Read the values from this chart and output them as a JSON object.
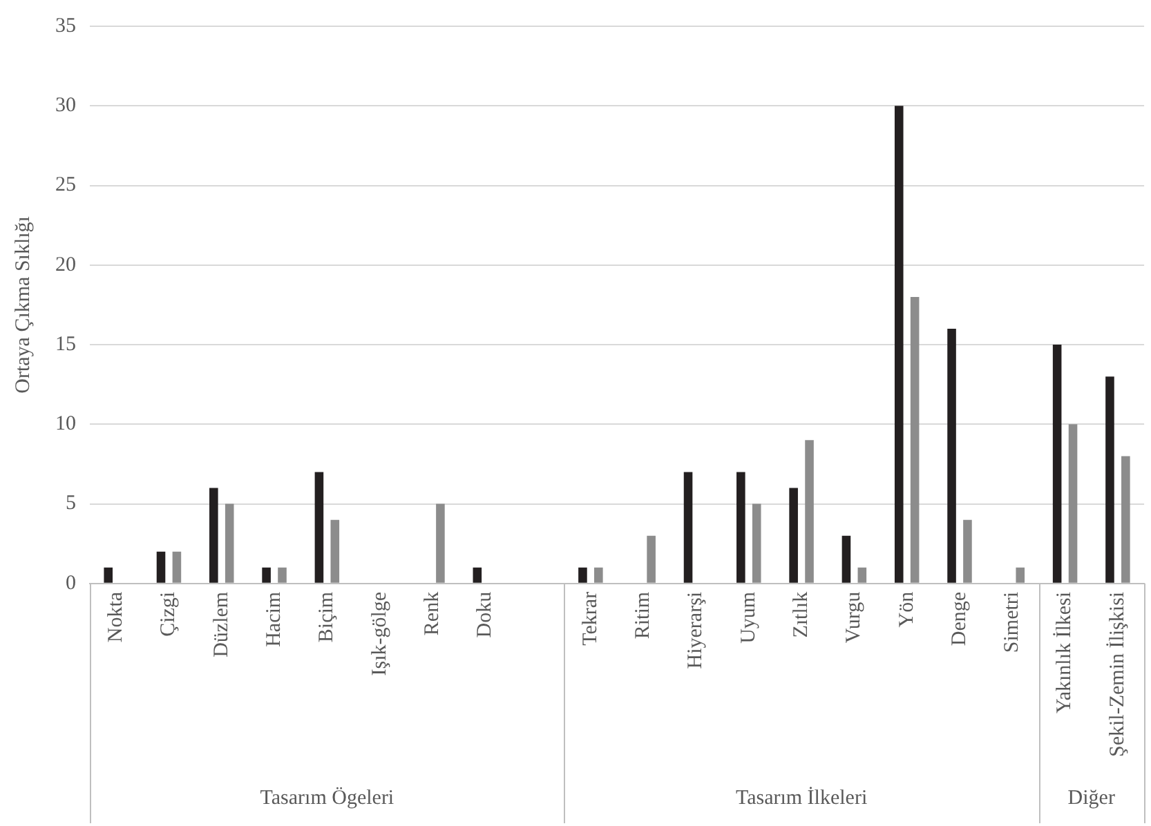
{
  "chart_data": {
    "type": "bar",
    "ylabel": "Ortaya Çıkma Sıklığı",
    "categories": [
      "Nokta",
      "Çizgi",
      "Düzlem",
      "Hacim",
      "Biçim",
      "Işık-gölge",
      "Renk",
      "Doku",
      null,
      "Tekrar",
      "Ritim",
      "Hiyerarşi",
      "Uyum",
      "Zıtlık",
      "Vurgu",
      "Yön",
      "Denge",
      "Simetri",
      "Yakınlık İlkesi",
      "Şekil-Zemin İlişkisi"
    ],
    "series": [
      {
        "color": "#231f20",
        "values": [
          1,
          2,
          6,
          1,
          7,
          0,
          0,
          1,
          null,
          1,
          0,
          7,
          7,
          6,
          3,
          30,
          16,
          0,
          15,
          13
        ]
      },
      {
        "color": "#8c8c8c",
        "values": [
          0,
          2,
          5,
          1,
          4,
          0,
          5,
          0,
          null,
          1,
          3,
          0,
          5,
          9,
          1,
          18,
          4,
          1,
          10,
          8
        ]
      }
    ],
    "ylim": [
      0,
      35
    ],
    "yticks": [
      0,
      5,
      10,
      15,
      20,
      25,
      30,
      35
    ],
    "grid": "y",
    "legend": false,
    "annotations": [
      "Tasarım Ögeleri",
      "Tasarım İlkeleri",
      "Diğer"
    ]
  }
}
